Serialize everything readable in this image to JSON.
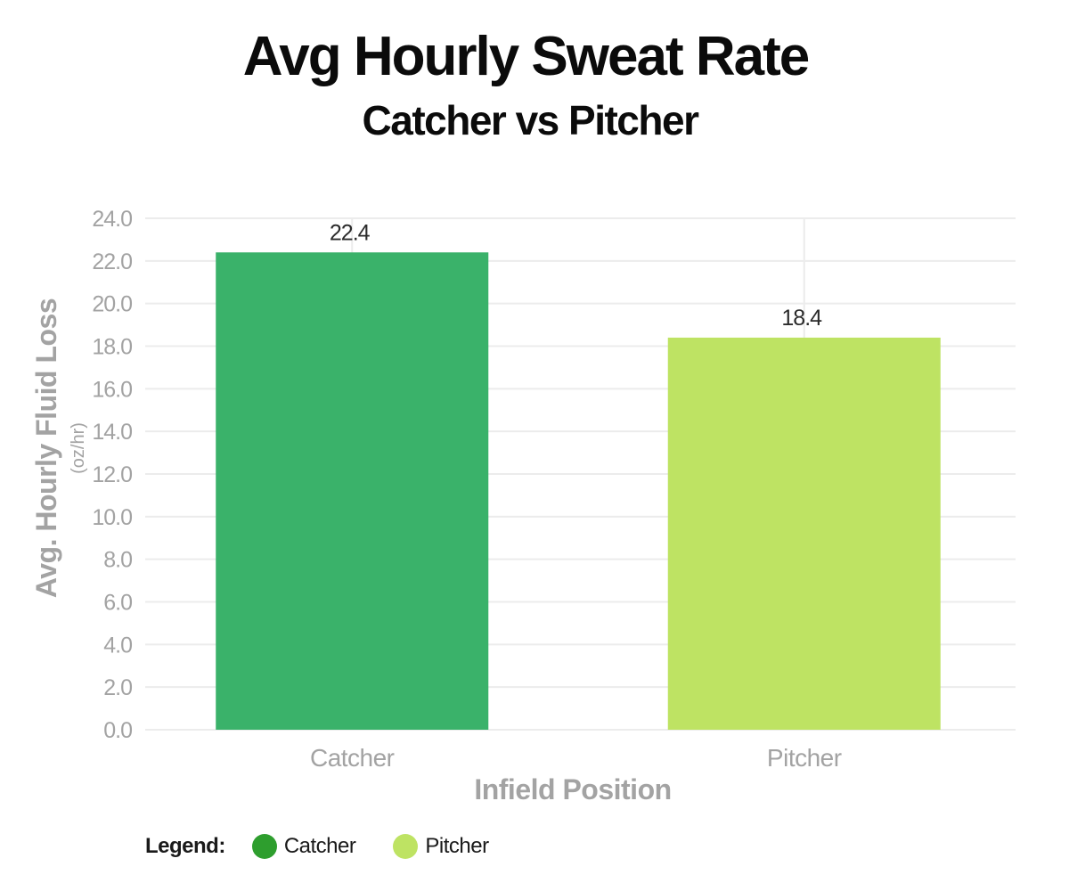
{
  "chart_data": {
    "type": "bar",
    "title": "Avg Hourly Sweat Rate",
    "subtitle": "Catcher vs Pitcher",
    "categories": [
      "Catcher",
      "Pitcher"
    ],
    "values": [
      22.4,
      18.4
    ],
    "data_labels": [
      "22.4",
      "18.4"
    ],
    "colors": [
      "#3ab26a",
      "#bee363"
    ],
    "xlabel": "Infield Position",
    "ylabel": "Avg. Hourly Fluid Loss",
    "ylabel_unit": "(oz/hr)",
    "ylim": [
      0,
      24
    ],
    "yticks": [
      "0.0",
      "2.0",
      "4.0",
      "6.0",
      "8.0",
      "10.0",
      "12.0",
      "14.0",
      "16.0",
      "18.0",
      "20.0",
      "22.0",
      "24.0"
    ],
    "grid": true,
    "legend_position": "bottom-left"
  },
  "legend": {
    "title": "Legend:",
    "items": [
      {
        "label": "Catcher",
        "color": "#2e9e2e"
      },
      {
        "label": "Pitcher",
        "color": "#bee363"
      }
    ]
  }
}
